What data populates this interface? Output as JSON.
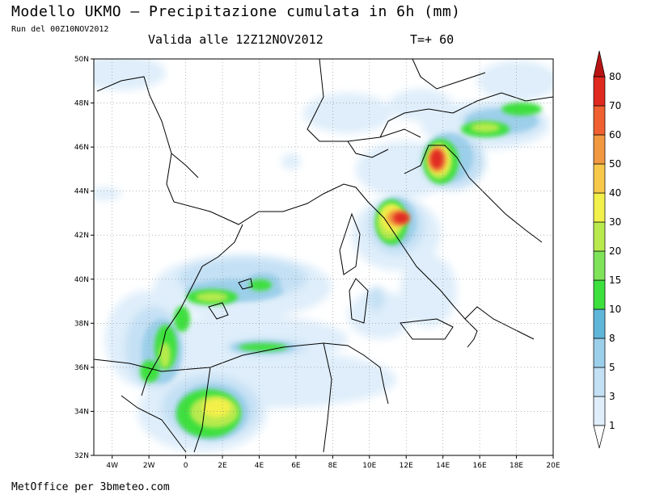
{
  "header": {
    "title": "Modello UKMO – Precipitazione cumulata in 6h (mm)",
    "run": "Run del 00Z10NOV2012",
    "valid": "Valida alle 12Z12NOV2012",
    "timestep": "T=+ 60"
  },
  "footer": {
    "credit": "MetOffice per 3bmeteo.com"
  },
  "map": {
    "lon_range": [
      -5,
      20
    ],
    "lat_range": [
      32,
      50
    ],
    "lon_ticks": [
      "4W",
      "2W",
      "0",
      "2E",
      "4E",
      "6E",
      "8E",
      "10E",
      "12E",
      "14E",
      "16E",
      "18E",
      "20E"
    ],
    "lat_ticks": [
      "50N",
      "48N",
      "46N",
      "44N",
      "42N",
      "40N",
      "38N",
      "36N",
      "34N",
      "32N"
    ],
    "grid": true
  },
  "colorbar": {
    "unit": "mm",
    "levels": [
      "1",
      "3",
      "5",
      "8",
      "10",
      "15",
      "20",
      "30",
      "40",
      "50",
      "60",
      "70",
      "80"
    ],
    "colors": [
      "#dfeefa",
      "#c4e0f4",
      "#9ccfea",
      "#5fb6d9",
      "#3ee03e",
      "#7fe35a",
      "#b8ea4e",
      "#f2f04a",
      "#f7c84a",
      "#f29840",
      "#f06030",
      "#e02a20",
      "#b81414"
    ]
  }
}
